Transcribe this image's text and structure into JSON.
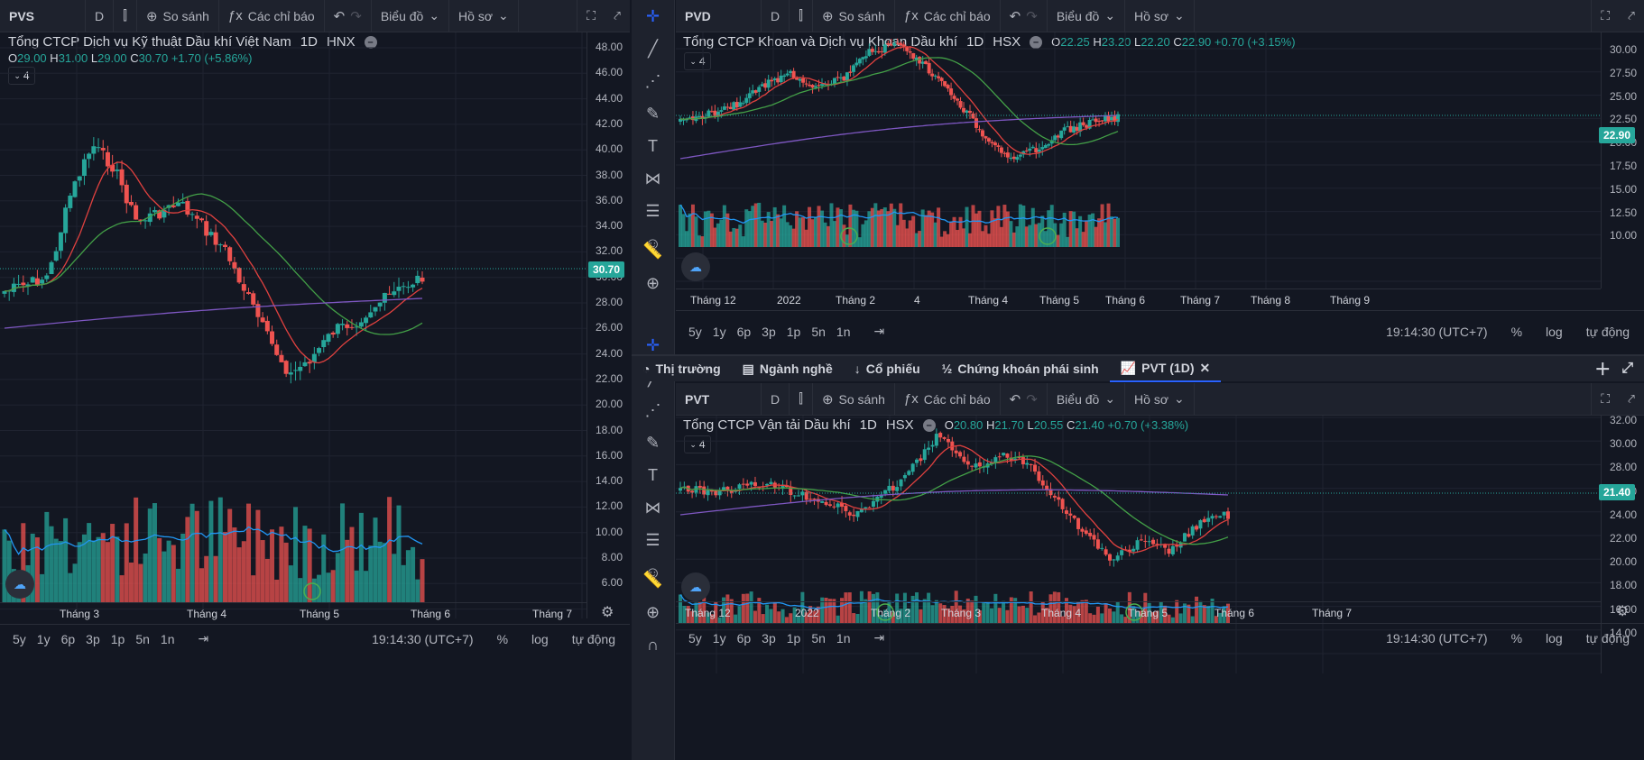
{
  "toolbar": {
    "compare": "So sánh",
    "indicators": "Các chỉ báo",
    "chart_menu": "Biểu đồ",
    "profile": "Hồ sơ",
    "interval": "D"
  },
  "bottom": {
    "ranges": [
      "5y",
      "1y",
      "6p",
      "3p",
      "1p",
      "5n",
      "1n"
    ],
    "time": "19:14:30 (UTC+7)",
    "pct": "%",
    "log": "log",
    "auto": "tự động"
  },
  "tabs": {
    "market": "Thị trường",
    "industry": "Ngành nghề",
    "stocks": "Cổ phiếu",
    "derivatives": "Chứng khoán phái sinh",
    "active": "PVT (1D)"
  },
  "charts": {
    "pvs": {
      "symbol": "PVS",
      "title": "Tổng CTCP Dịch vụ Kỹ thuật Dầu khí Việt Nam",
      "tf": "1D",
      "exch": "HNX",
      "o": "29.00",
      "h": "31.00",
      "l": "29.00",
      "c": "30.70",
      "chg": "+1.70 (+5.86%)",
      "count": "4",
      "last": "30.70",
      "yticks": [
        "48.00",
        "46.00",
        "44.00",
        "42.00",
        "40.00",
        "38.00",
        "36.00",
        "34.00",
        "32.00",
        "30.00",
        "28.00",
        "26.00",
        "24.00",
        "22.00",
        "20.00",
        "18.00",
        "16.00",
        "14.00",
        "12.00",
        "10.00",
        "8.00",
        "6.00"
      ],
      "xticks": [
        "Tháng 3",
        "Tháng 4",
        "Tháng 5",
        "Tháng 6",
        "Tháng 7"
      ]
    },
    "pvd": {
      "symbol": "PVD",
      "title": "Tổng CTCP Khoan và Dịch vụ Khoan Dầu khí",
      "tf": "1D",
      "exch": "HSX",
      "o": "22.25",
      "h": "23.20",
      "l": "22.20",
      "c": "22.90",
      "chg": "+0.70 (+3.15%)",
      "count": "4",
      "last": "22.90",
      "yticks": [
        "30.00",
        "27.50",
        "25.00",
        "22.50",
        "20.00",
        "17.50",
        "15.00",
        "12.50",
        "10.00"
      ],
      "xticks": [
        "Tháng 12",
        "2022",
        "Tháng 2",
        "4",
        "Tháng 4",
        "Tháng 5",
        "Tháng 6",
        "Tháng 7",
        "Tháng 8",
        "Tháng 9"
      ]
    },
    "pvt": {
      "symbol": "PVT",
      "title": "Tổng CTCP Vận tải Dầu khí",
      "tf": "1D",
      "exch": "HSX",
      "o": "20.80",
      "h": "21.70",
      "l": "20.55",
      "c": "21.40",
      "chg": "+0.70 (+3.38%)",
      "count": "4",
      "last": "21.40",
      "yticks": [
        "32.00",
        "30.00",
        "28.00",
        "26.00",
        "24.00",
        "22.00",
        "20.00",
        "18.00",
        "16.00",
        "14.00"
      ],
      "xticks": [
        "Tháng 12",
        "2022",
        "Tháng 2",
        "Tháng 3",
        "Tháng 4",
        "Tháng 5",
        "Tháng 6",
        "Tháng 7"
      ]
    }
  },
  "colors": {
    "up": "#26a69a",
    "down": "#ef5350",
    "ma_fast": "#e0413f",
    "ma_mid": "#43a047",
    "ma_slow": "#7e57c2",
    "vol_ma": "#2196f3"
  }
}
